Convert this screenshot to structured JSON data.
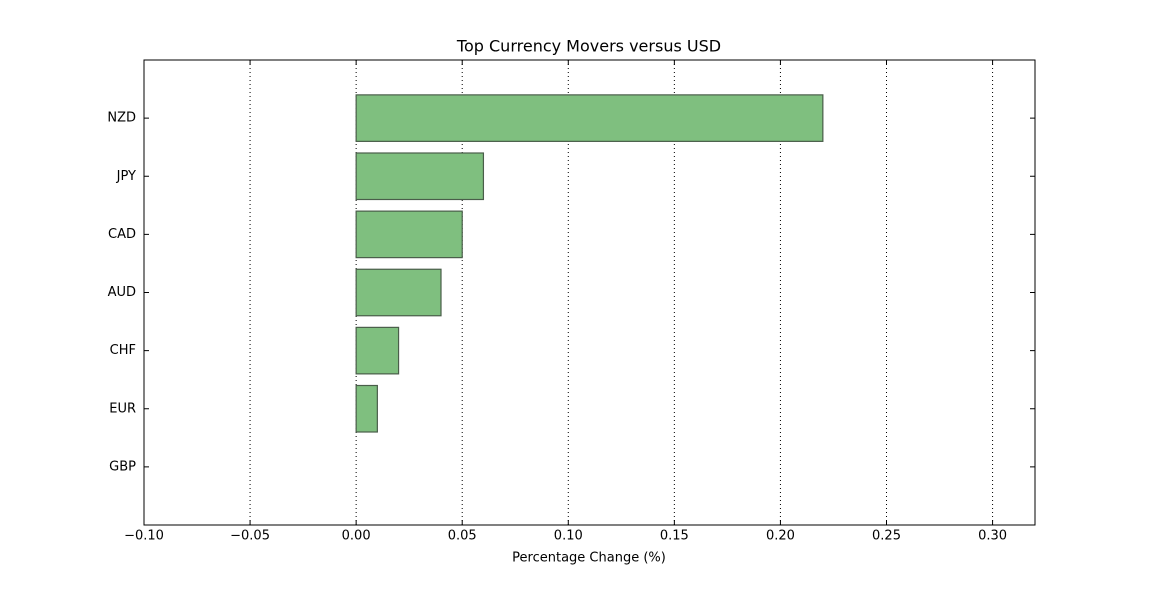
{
  "chart_data": {
    "type": "barh",
    "title": "Top Currency Movers versus USD",
    "xlabel": "Percentage Change (%)",
    "categories": [
      "NZD",
      "JPY",
      "CAD",
      "AUD",
      "CHF",
      "EUR",
      "GBP"
    ],
    "values": [
      0.22,
      0.06,
      0.05,
      0.04,
      0.02,
      0.01,
      0.0
    ],
    "color": "#7fbf7f",
    "edgecolor": "#4a5e4a",
    "xlim": [
      -0.1,
      0.32
    ],
    "xticks": [
      {
        "value": -0.1,
        "label": "−0.10"
      },
      {
        "value": -0.05,
        "label": "−0.05"
      },
      {
        "value": 0,
        "label": "0.00"
      },
      {
        "value": 0.05,
        "label": "0.05"
      },
      {
        "value": 0.1,
        "label": "0.10"
      },
      {
        "value": 0.15,
        "label": "0.15"
      },
      {
        "value": 0.2,
        "label": "0.20"
      },
      {
        "value": 0.25,
        "label": "0.25"
      },
      {
        "value": 0.3,
        "label": "0.30"
      }
    ],
    "grid": true
  }
}
